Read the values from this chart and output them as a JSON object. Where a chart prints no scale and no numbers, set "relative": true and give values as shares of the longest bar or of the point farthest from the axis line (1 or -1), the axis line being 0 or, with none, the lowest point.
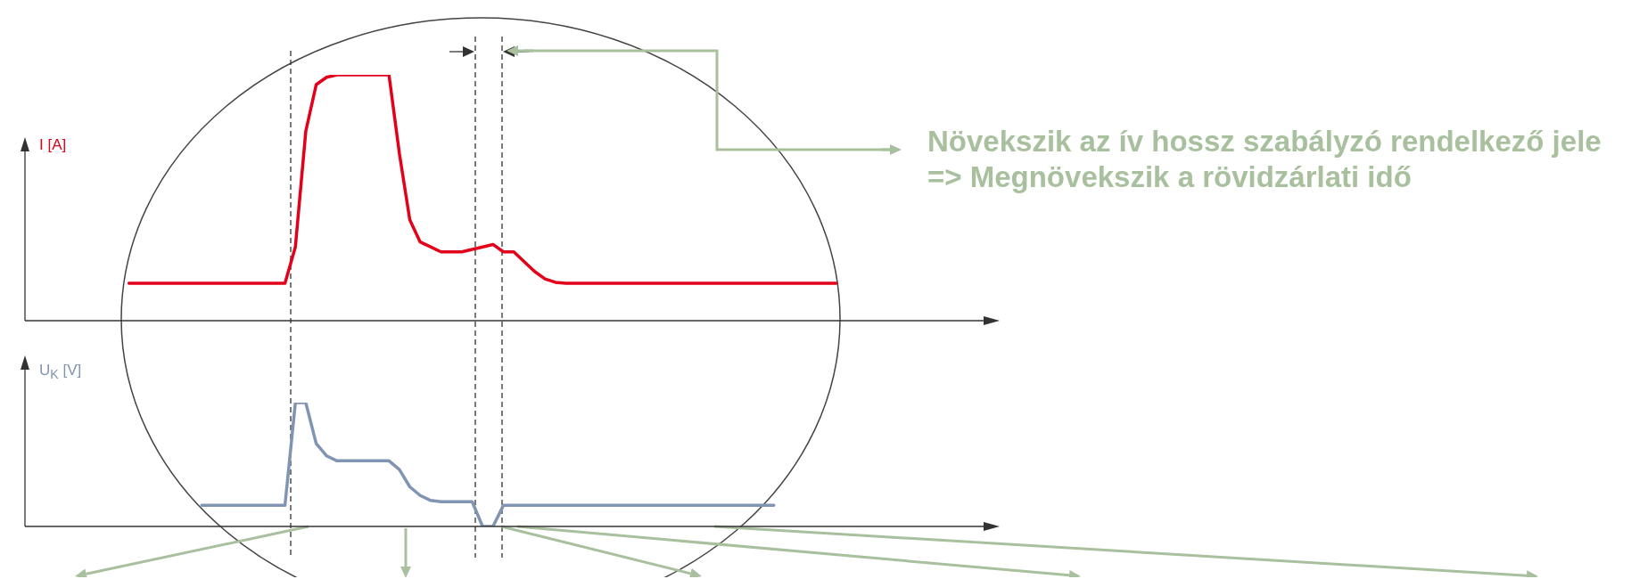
{
  "chart_data": [
    {
      "type": "line",
      "ylabel": "I [A]",
      "relative": true,
      "marker": "none",
      "line_style": "solid",
      "categories": [
        null,
        null,
        null,
        null,
        null,
        null,
        null,
        null,
        null,
        null,
        null,
        null,
        null,
        null,
        null,
        null,
        null,
        null,
        null,
        null,
        null,
        null,
        null,
        null,
        null,
        null,
        null,
        null,
        null,
        null,
        null,
        null,
        null,
        null,
        null,
        null,
        null,
        null,
        null,
        null,
        null,
        null,
        null,
        null,
        null,
        null,
        null,
        null,
        null,
        null,
        null,
        null,
        null,
        null,
        null,
        null,
        null,
        null,
        null,
        null,
        null,
        null,
        null,
        null,
        null,
        null,
        null,
        null,
        null,
        null,
        null,
        null,
        null,
        null,
        null,
        null,
        null,
        null,
        null,
        null,
        null,
        null,
        null,
        null,
        null,
        null,
        null,
        null,
        null,
        null,
        null,
        null,
        null
      ],
      "series": [
        {
          "color": "#e2001a",
          "values": [
            null,
            null,
            null,
            null,
            null,
            null,
            null,
            null,
            null,
            null,
            0.152,
            0.152,
            0.152,
            0.152,
            0.152,
            0.152,
            0.152,
            0.152,
            0.152,
            0.152,
            0.152,
            0.152,
            0.152,
            0.152,
            0.152,
            0.152,
            0.3,
            0.77,
            0.96,
            0.99,
            1,
            1,
            1,
            1,
            1,
            1,
            0.68,
            0.41,
            0.32,
            0.3,
            0.28,
            0.28,
            0.28,
            0.29,
            0.3,
            0.31,
            0.28,
            0.28,
            0.24,
            0.2,
            0.17,
            0.156,
            0.152,
            0.152,
            0.152,
            0.152,
            0.152,
            0.152,
            0.152,
            0.152,
            0.152,
            0.152,
            0.152,
            0.152,
            0.152,
            0.152,
            0.152,
            0.152,
            0.152,
            0.152,
            0.152,
            0.152,
            0.152,
            0.152,
            0.152,
            0.152,
            0.152,
            0.152,
            0.152,
            null,
            null,
            null,
            null,
            null,
            null,
            null,
            null,
            null,
            null,
            null,
            null,
            null,
            null
          ]
        }
      ],
      "annotations": [
        "Növekszik az ív hossz szabályzó rendelkező jele => Megnövekszik a rövidzárlati idő"
      ]
    },
    {
      "type": "line",
      "ylabel": "U$_{K}$ [V]",
      "relative": true,
      "marker": "none",
      "line_style": "solid",
      "categories": [
        null,
        null,
        null,
        null,
        null,
        null,
        null,
        null,
        null,
        null,
        null,
        null,
        null,
        null,
        null,
        null,
        null,
        null,
        null,
        null,
        null,
        null,
        null,
        null,
        null,
        null,
        null,
        null,
        null,
        null,
        null,
        null,
        null,
        null,
        null,
        null,
        null,
        null,
        null,
        null,
        null,
        null,
        null,
        null,
        null,
        null,
        null,
        null,
        null,
        null,
        null,
        null,
        null,
        null,
        null,
        null,
        null,
        null,
        null,
        null,
        null,
        null,
        null,
        null,
        null,
        null,
        null,
        null,
        null,
        null,
        null,
        null,
        null,
        null,
        null,
        null,
        null,
        null,
        null,
        null,
        null,
        null,
        null,
        null,
        null,
        null,
        null,
        null,
        null,
        null,
        null,
        null,
        null
      ],
      "series": [
        {
          "color": "#8094b4",
          "values": [
            null,
            null,
            null,
            null,
            null,
            null,
            null,
            null,
            null,
            null,
            null,
            null,
            null,
            null,
            null,
            null,
            null,
            0.17,
            0.17,
            0.17,
            0.17,
            0.17,
            0.17,
            0.17,
            0.17,
            0.17,
            1,
            1,
            0.67,
            0.57,
            0.53,
            0.53,
            0.53,
            0.53,
            0.53,
            0.53,
            0.46,
            0.32,
            0.25,
            0.21,
            0.2,
            0.2,
            0.2,
            0.2,
            0,
            0,
            0.17,
            0.17,
            0.17,
            0.17,
            0.17,
            0.17,
            0.17,
            0.17,
            0.17,
            0.17,
            0.17,
            0.17,
            0.17,
            0.17,
            0.17,
            0.17,
            0.17,
            0.17,
            0.17,
            0.17,
            0.17,
            0.17,
            0.17,
            0.17,
            0.17,
            0.17,
            0.17,
            null,
            null,
            null,
            null,
            null,
            null,
            null,
            null,
            null,
            null,
            null,
            null,
            null,
            null,
            null,
            null,
            null,
            null,
            null,
            null
          ]
        }
      ]
    }
  ]
}
